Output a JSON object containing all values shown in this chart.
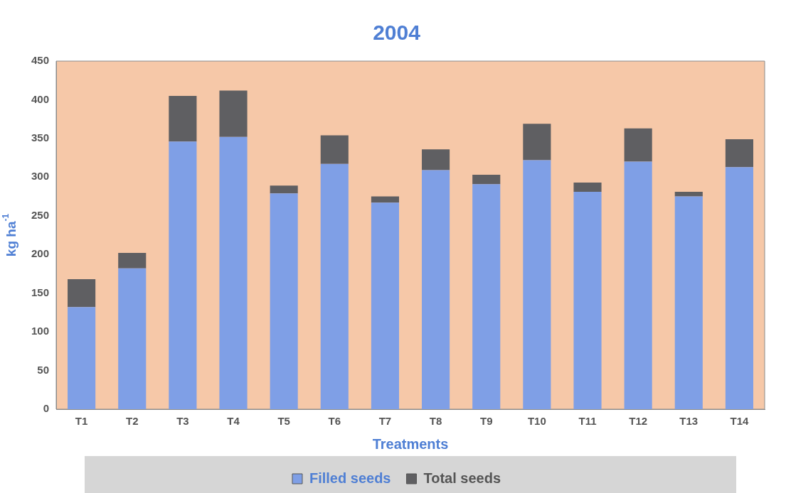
{
  "chart_data": {
    "type": "bar",
    "title": "2004",
    "xlabel": "Treatments",
    "ylabel": "kg ha$^{-1}$",
    "categories": [
      "T1",
      "T2",
      "T3",
      "T4",
      "T5",
      "T6",
      "T7",
      "T8",
      "T9",
      "T10",
      "T11",
      "T12",
      "T13",
      "T14"
    ],
    "stacked": true,
    "ylim": [
      0,
      450
    ],
    "yticks": [
      0,
      50,
      100,
      150,
      200,
      250,
      300,
      350,
      400,
      450
    ],
    "grid": false,
    "legend": "bottom",
    "series": [
      {
        "name": "Filled seeds",
        "color": "#7f9fe6",
        "values": [
          132,
          182,
          346,
          352,
          279,
          317,
          267,
          309,
          291,
          322,
          281,
          320,
          275,
          313
        ]
      },
      {
        "name": "Total seeds",
        "color": "#5f5f62",
        "values": [
          36,
          20,
          59,
          60,
          10,
          37,
          8,
          27,
          12,
          47,
          12,
          43,
          6,
          36
        ]
      }
    ]
  }
}
